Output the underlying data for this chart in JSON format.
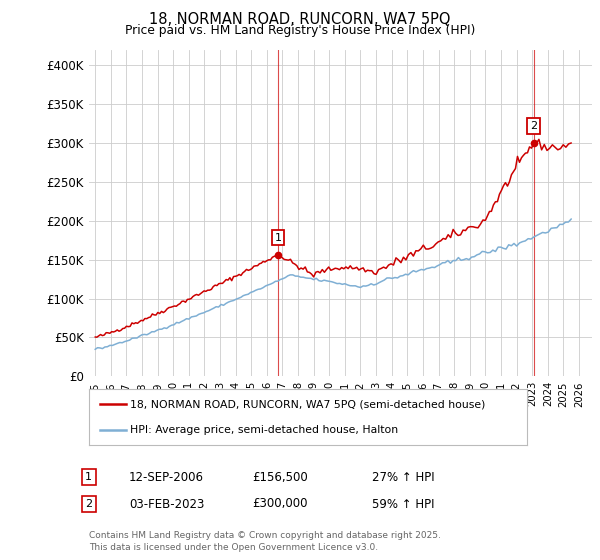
{
  "title": "18, NORMAN ROAD, RUNCORN, WA7 5PQ",
  "subtitle": "Price paid vs. HM Land Registry's House Price Index (HPI)",
  "ylim": [
    0,
    420000
  ],
  "yticks": [
    0,
    50000,
    100000,
    150000,
    200000,
    250000,
    300000,
    350000,
    400000
  ],
  "ytick_labels": [
    "£0",
    "£50K",
    "£100K",
    "£150K",
    "£200K",
    "£250K",
    "£300K",
    "£350K",
    "£400K"
  ],
  "xlim_start": 1994.6,
  "xlim_end": 2026.8,
  "xtick_years": [
    1995,
    1996,
    1997,
    1998,
    1999,
    2000,
    2001,
    2002,
    2003,
    2004,
    2005,
    2006,
    2007,
    2008,
    2009,
    2010,
    2011,
    2012,
    2013,
    2014,
    2015,
    2016,
    2017,
    2018,
    2019,
    2020,
    2021,
    2022,
    2023,
    2024,
    2025,
    2026
  ],
  "red_color": "#cc0000",
  "blue_color": "#7fafd4",
  "sale1_x": 2006.71,
  "sale1_y": 156500,
  "sale1_label": "1",
  "sale1_date": "12-SEP-2006",
  "sale1_price": "£156,500",
  "sale1_hpi": "27% ↑ HPI",
  "sale2_x": 2023.08,
  "sale2_y": 300000,
  "sale2_label": "2",
  "sale2_date": "03-FEB-2023",
  "sale2_price": "£300,000",
  "sale2_hpi": "59% ↑ HPI",
  "legend_line1": "18, NORMAN ROAD, RUNCORN, WA7 5PQ (semi-detached house)",
  "legend_line2": "HPI: Average price, semi-detached house, Halton",
  "footnote1": "Contains HM Land Registry data © Crown copyright and database right 2025.",
  "footnote2": "This data is licensed under the Open Government Licence v3.0.",
  "bg_color": "#ffffff",
  "grid_color": "#cccccc",
  "vline_color": "#cc0000"
}
